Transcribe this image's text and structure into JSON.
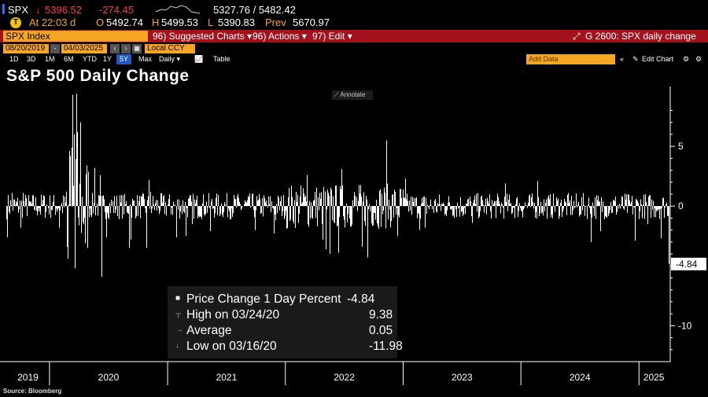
{
  "ticker": {
    "symbol": "SPX",
    "arrow": "↓",
    "last": "5396.52",
    "change": "-274.45",
    "range_low_high": "5327.76 / 5482.42",
    "time_label": "At 22:03 d",
    "open_label": "O",
    "open": "5492.74",
    "high_label": "H",
    "high": "5499.53",
    "low_label": "L",
    "low": "5390.83",
    "prev_label": "Prev",
    "prev": "5670.97"
  },
  "menubar": {
    "index_name": "SPX Index",
    "suggested": "96) Suggested Charts ▾",
    "actions": "96) Actions ▾",
    "edit": "97) Edit ▾",
    "chart_title": "G 2600: SPX daily change"
  },
  "dates": {
    "start": "08/20/2019",
    "end": "04/03/2025",
    "currency": "Local CCY"
  },
  "ranges": [
    "1D",
    "3D",
    "1M",
    "6M",
    "YTD",
    "1Y",
    "5Y",
    "Max"
  ],
  "selected_range": "5Y",
  "frequency": "Daily ▾",
  "table_label": "Table",
  "add_data_placeholder": "Add Data",
  "edit_chart_label": "Edit Chart",
  "annotate_label": "Annotate",
  "source_label": "Source: Bloomberg",
  "colors": {
    "accent_amber": "#f5a623",
    "menubar_red": "#a3121c",
    "down_red": "#ff3b3b",
    "selected_blue": "#2057c0"
  },
  "icons": [
    "tab-blue-indicator",
    "down-arrow-icon",
    "sparkline-icon",
    "share-icon",
    "expand-icon",
    "chart-type-icon",
    "collapse-icon",
    "wrench-icon",
    "settings-icon"
  ],
  "legend": {
    "rows": [
      {
        "marker": "■",
        "label": "Price Change 1 Day Percent",
        "value": "-4.84"
      },
      {
        "marker": "┬",
        "label": "High on 03/24/20",
        "value": "9.38"
      },
      {
        "marker": "→",
        "label": "Average",
        "value": "0.05"
      },
      {
        "marker": "↓",
        "label": "Low on 03/16/20",
        "value": "-11.98"
      }
    ]
  },
  "chart_data": {
    "type": "bar",
    "title": "S&P 500 Daily Change",
    "xlabel": "",
    "ylabel": "",
    "ylim": [
      -13,
      10
    ],
    "y_ticks": [
      5,
      0,
      -10
    ],
    "last_value_label": "-4.84",
    "x_start": "2019-08-20",
    "x_end": "2025-04-03",
    "year_labels": [
      "2019",
      "2020",
      "2021",
      "2022",
      "2023",
      "2024",
      "2025"
    ],
    "series": [
      {
        "name": "Price Change 1 Day Percent",
        "values_note_sampled": true,
        "points": [
          [
            "2019-08-23",
            -2.6
          ],
          [
            "2019-09-05",
            1.1
          ],
          [
            "2019-10-02",
            -1.8
          ],
          [
            "2019-10-11",
            1.1
          ],
          [
            "2019-11-04",
            0.4
          ],
          [
            "2019-12-03",
            -0.7
          ],
          [
            "2019-12-13",
            0.9
          ],
          [
            "2020-01-31",
            -1.8
          ],
          [
            "2020-02-24",
            -3.4
          ],
          [
            "2020-02-25",
            -3.0
          ],
          [
            "2020-02-27",
            -4.4
          ],
          [
            "2020-03-02",
            4.6
          ],
          [
            "2020-03-04",
            4.2
          ],
          [
            "2020-03-09",
            -7.6
          ],
          [
            "2020-03-10",
            4.9
          ],
          [
            "2020-03-12",
            -9.5
          ],
          [
            "2020-03-13",
            9.3
          ],
          [
            "2020-03-16",
            -11.98
          ],
          [
            "2020-03-17",
            6.0
          ],
          [
            "2020-03-18",
            -5.2
          ],
          [
            "2020-03-24",
            9.38
          ],
          [
            "2020-03-26",
            6.2
          ],
          [
            "2020-03-31",
            -1.6
          ],
          [
            "2020-04-06",
            7.0
          ],
          [
            "2020-04-21",
            -3.1
          ],
          [
            "2020-05-18",
            3.2
          ],
          [
            "2020-06-05",
            2.6
          ],
          [
            "2020-06-11",
            -5.9
          ],
          [
            "2020-06-24",
            -2.6
          ],
          [
            "2020-09-03",
            -3.5
          ],
          [
            "2020-09-08",
            -2.8
          ],
          [
            "2020-10-28",
            -3.5
          ],
          [
            "2020-11-04",
            2.2
          ],
          [
            "2020-11-09",
            1.2
          ],
          [
            "2021-01-27",
            -2.6
          ],
          [
            "2021-02-25",
            -2.5
          ],
          [
            "2021-03-18",
            -1.5
          ],
          [
            "2021-05-12",
            -2.1
          ],
          [
            "2021-09-28",
            -2.0
          ],
          [
            "2021-11-26",
            -2.3
          ],
          [
            "2021-12-01",
            -1.2
          ],
          [
            "2022-01-05",
            -1.9
          ],
          [
            "2022-02-24",
            1.5
          ],
          [
            "2022-03-09",
            2.6
          ],
          [
            "2022-04-26",
            -2.8
          ],
          [
            "2022-05-05",
            -3.6
          ],
          [
            "2022-05-18",
            -4.0
          ],
          [
            "2022-06-13",
            -3.9
          ],
          [
            "2022-06-24",
            3.1
          ],
          [
            "2022-08-26",
            -3.4
          ],
          [
            "2022-09-13",
            -4.3
          ],
          [
            "2022-11-10",
            5.5
          ],
          [
            "2022-12-15",
            -2.5
          ],
          [
            "2023-01-06",
            2.3
          ],
          [
            "2023-02-21",
            -2.0
          ],
          [
            "2023-03-09",
            -1.8
          ],
          [
            "2023-08-02",
            -1.4
          ],
          [
            "2023-11-14",
            1.9
          ],
          [
            "2024-02-22",
            2.1
          ],
          [
            "2024-08-05",
            -3.0
          ],
          [
            "2024-09-03",
            -2.1
          ],
          [
            "2024-12-18",
            -2.9
          ],
          [
            "2025-01-27",
            -1.5
          ],
          [
            "2025-03-10",
            -2.7
          ],
          [
            "2025-04-03",
            -4.84
          ]
        ]
      }
    ],
    "grid": false,
    "legend_position": "bottom-center"
  }
}
